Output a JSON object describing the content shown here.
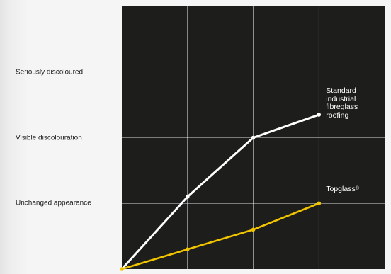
{
  "chart_data": {
    "type": "line",
    "title": "",
    "xlabel": "",
    "ylabel": "",
    "x": [
      0,
      1,
      2,
      3
    ],
    "xlim": [
      0,
      4
    ],
    "ylim": [
      0,
      4
    ],
    "y_categories": [
      {
        "value": 1,
        "label": "Unchanged appearance"
      },
      {
        "value": 2,
        "label": "Visible discolouration"
      },
      {
        "value": 3,
        "label": "Seriously discoloured"
      }
    ],
    "grid": true,
    "background": "#1d1d1b",
    "series": [
      {
        "name_lines": [
          "Standard",
          "industrial",
          "fibreglass",
          "roofing"
        ],
        "color": "#ffffff",
        "values": [
          0,
          1.1,
          2.0,
          2.35
        ]
      },
      {
        "name": "Topglass",
        "name_mark": "®",
        "color": "#f2c400",
        "values": [
          0,
          0.3,
          0.6,
          1.0
        ]
      }
    ]
  }
}
